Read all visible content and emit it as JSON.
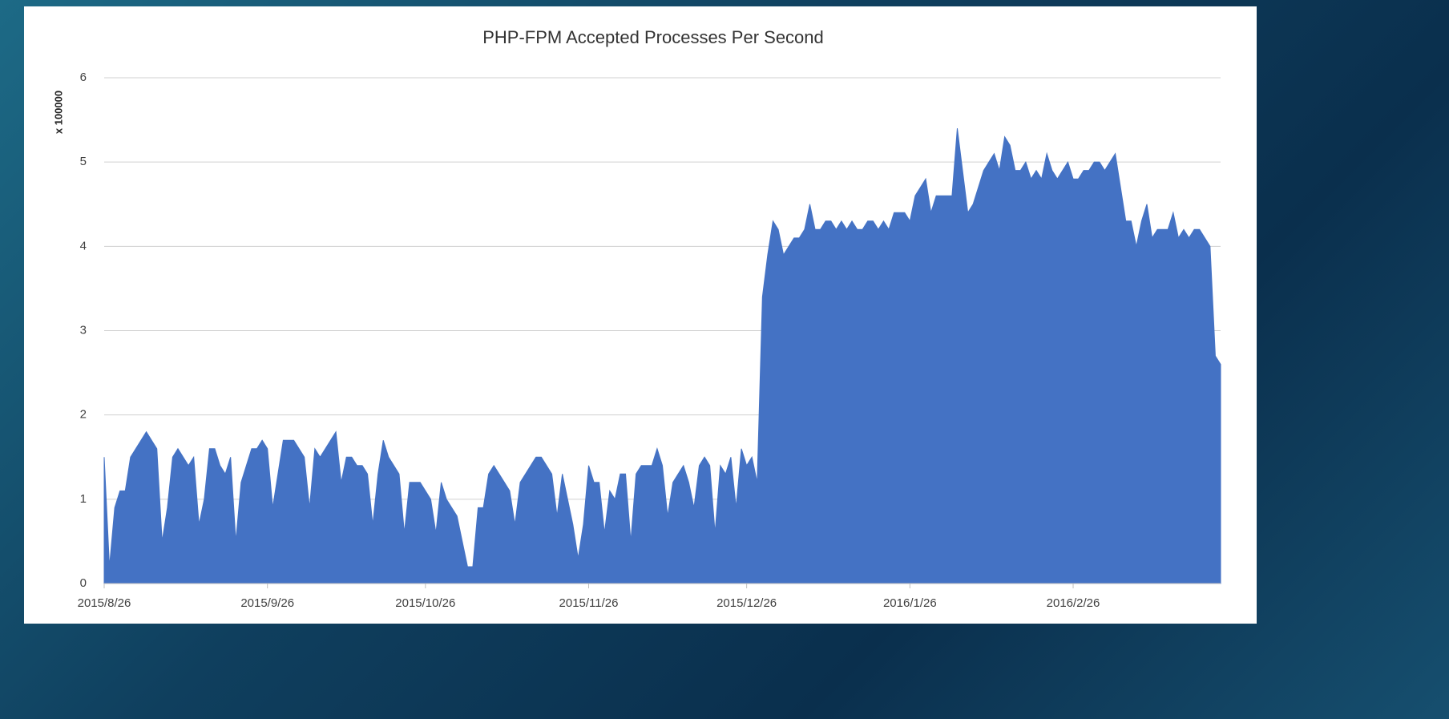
{
  "chart_data": {
    "type": "area",
    "title": "PHP-FPM Accepted Processes Per Second",
    "y_label": "x 100000",
    "color": "#4472c4",
    "grid": true,
    "ylim": [
      0,
      6
    ],
    "yticks": [
      0,
      1,
      2,
      3,
      4,
      5,
      6
    ],
    "xticks": [
      "2015/8/26",
      "2015/9/26",
      "2015/10/26",
      "2015/11/26",
      "2015/12/26",
      "2016/1/26",
      "2016/2/26"
    ],
    "x": [
      "2015/8/26",
      "2015/8/27",
      "2015/8/28",
      "2015/8/29",
      "2015/8/30",
      "2015/8/31",
      "2015/9/1",
      "2015/9/2",
      "2015/9/3",
      "2015/9/4",
      "2015/9/5",
      "2015/9/6",
      "2015/9/7",
      "2015/9/8",
      "2015/9/9",
      "2015/9/10",
      "2015/9/11",
      "2015/9/12",
      "2015/9/13",
      "2015/9/14",
      "2015/9/15",
      "2015/9/16",
      "2015/9/17",
      "2015/9/18",
      "2015/9/19",
      "2015/9/20",
      "2015/9/21",
      "2015/9/22",
      "2015/9/23",
      "2015/9/24",
      "2015/9/25",
      "2015/9/26",
      "2015/9/27",
      "2015/9/28",
      "2015/9/29",
      "2015/9/30",
      "2015/10/1",
      "2015/10/2",
      "2015/10/3",
      "2015/10/4",
      "2015/10/5",
      "2015/10/6",
      "2015/10/7",
      "2015/10/8",
      "2015/10/9",
      "2015/10/10",
      "2015/10/11",
      "2015/10/12",
      "2015/10/13",
      "2015/10/14",
      "2015/10/15",
      "2015/10/16",
      "2015/10/17",
      "2015/10/18",
      "2015/10/19",
      "2015/10/20",
      "2015/10/21",
      "2015/10/22",
      "2015/10/23",
      "2015/10/24",
      "2015/10/25",
      "2015/10/26",
      "2015/10/27",
      "2015/10/28",
      "2015/10/29",
      "2015/10/30",
      "2015/10/31",
      "2015/11/1",
      "2015/11/2",
      "2015/11/3",
      "2015/11/4",
      "2015/11/5",
      "2015/11/6",
      "2015/11/7",
      "2015/11/8",
      "2015/11/9",
      "2015/11/10",
      "2015/11/11",
      "2015/11/12",
      "2015/11/13",
      "2015/11/14",
      "2015/11/15",
      "2015/11/16",
      "2015/11/17",
      "2015/11/18",
      "2015/11/19",
      "2015/11/20",
      "2015/11/21",
      "2015/11/22",
      "2015/11/23",
      "2015/11/24",
      "2015/11/25",
      "2015/11/26",
      "2015/11/27",
      "2015/11/28",
      "2015/11/29",
      "2015/11/30",
      "2015/12/1",
      "2015/12/2",
      "2015/12/3",
      "2015/12/4",
      "2015/12/5",
      "2015/12/6",
      "2015/12/7",
      "2015/12/8",
      "2015/12/9",
      "2015/12/10",
      "2015/12/11",
      "2015/12/12",
      "2015/12/13",
      "2015/12/14",
      "2015/12/15",
      "2015/12/16",
      "2015/12/17",
      "2015/12/18",
      "2015/12/19",
      "2015/12/20",
      "2015/12/21",
      "2015/12/22",
      "2015/12/23",
      "2015/12/24",
      "2015/12/25",
      "2015/12/26",
      "2015/12/27",
      "2015/12/28",
      "2015/12/29",
      "2015/12/30",
      "2015/12/31",
      "2016/1/1",
      "2016/1/2",
      "2016/1/3",
      "2016/1/4",
      "2016/1/5",
      "2016/1/6",
      "2016/1/7",
      "2016/1/8",
      "2016/1/9",
      "2016/1/10",
      "2016/1/11",
      "2016/1/12",
      "2016/1/13",
      "2016/1/14",
      "2016/1/15",
      "2016/1/16",
      "2016/1/17",
      "2016/1/18",
      "2016/1/19",
      "2016/1/20",
      "2016/1/21",
      "2016/1/22",
      "2016/1/23",
      "2016/1/24",
      "2016/1/25",
      "2016/1/26",
      "2016/1/27",
      "2016/1/28",
      "2016/1/29",
      "2016/1/30",
      "2016/1/31",
      "2016/2/1",
      "2016/2/2",
      "2016/2/3",
      "2016/2/4",
      "2016/2/5",
      "2016/2/6",
      "2016/2/7",
      "2016/2/8",
      "2016/2/9",
      "2016/2/10",
      "2016/2/11",
      "2016/2/12",
      "2016/2/13",
      "2016/2/14",
      "2016/2/15",
      "2016/2/16",
      "2016/2/17",
      "2016/2/18",
      "2016/2/19",
      "2016/2/20",
      "2016/2/21",
      "2016/2/22",
      "2016/2/23",
      "2016/2/24",
      "2016/2/25",
      "2016/2/26",
      "2016/2/27",
      "2016/2/28",
      "2016/2/29",
      "2016/3/1",
      "2016/3/2",
      "2016/3/3",
      "2016/3/4",
      "2016/3/5",
      "2016/3/6",
      "2016/3/7",
      "2016/3/8",
      "2016/3/9",
      "2016/3/10",
      "2016/3/11",
      "2016/3/12",
      "2016/3/13",
      "2016/3/14",
      "2016/3/15",
      "2016/3/16",
      "2016/3/17",
      "2016/3/18",
      "2016/3/19",
      "2016/3/20",
      "2016/3/21",
      "2016/3/22",
      "2016/3/23",
      "2016/3/24",
      "2016/3/25"
    ],
    "values": [
      1.5,
      0.2,
      0.9,
      1.1,
      1.1,
      1.5,
      1.6,
      1.7,
      1.8,
      1.7,
      1.6,
      0.5,
      0.9,
      1.5,
      1.6,
      1.5,
      1.4,
      1.5,
      0.7,
      1.0,
      1.6,
      1.6,
      1.4,
      1.3,
      1.5,
      0.5,
      1.2,
      1.4,
      1.6,
      1.6,
      1.7,
      1.6,
      0.9,
      1.3,
      1.7,
      1.7,
      1.7,
      1.6,
      1.5,
      0.9,
      1.6,
      1.5,
      1.6,
      1.7,
      1.8,
      1.2,
      1.5,
      1.5,
      1.4,
      1.4,
      1.3,
      0.7,
      1.3,
      1.7,
      1.5,
      1.4,
      1.3,
      0.6,
      1.2,
      1.2,
      1.2,
      1.1,
      1.0,
      0.6,
      1.2,
      1.0,
      0.9,
      0.8,
      0.5,
      0.2,
      0.2,
      0.9,
      0.9,
      1.3,
      1.4,
      1.3,
      1.2,
      1.1,
      0.7,
      1.2,
      1.3,
      1.4,
      1.5,
      1.5,
      1.4,
      1.3,
      0.8,
      1.3,
      1.0,
      0.7,
      0.3,
      0.7,
      1.4,
      1.2,
      1.2,
      0.6,
      1.1,
      1.0,
      1.3,
      1.3,
      0.5,
      1.3,
      1.4,
      1.4,
      1.4,
      1.6,
      1.4,
      0.8,
      1.2,
      1.3,
      1.4,
      1.2,
      0.9,
      1.4,
      1.5,
      1.4,
      0.6,
      1.4,
      1.3,
      1.5,
      0.9,
      1.6,
      1.4,
      1.5,
      1.2,
      3.4,
      3.9,
      4.3,
      4.2,
      3.9,
      4.0,
      4.1,
      4.1,
      4.2,
      4.5,
      4.2,
      4.2,
      4.3,
      4.3,
      4.2,
      4.3,
      4.2,
      4.3,
      4.2,
      4.2,
      4.3,
      4.3,
      4.2,
      4.3,
      4.2,
      4.4,
      4.4,
      4.4,
      4.3,
      4.6,
      4.7,
      4.8,
      4.4,
      4.6,
      4.6,
      4.6,
      4.6,
      5.4,
      4.9,
      4.4,
      4.5,
      4.7,
      4.9,
      5.0,
      5.1,
      4.9,
      5.3,
      5.2,
      4.9,
      4.9,
      5.0,
      4.8,
      4.9,
      4.8,
      5.1,
      4.9,
      4.8,
      4.9,
      5.0,
      4.8,
      4.8,
      4.9,
      4.9,
      5.0,
      5.0,
      4.9,
      5.0,
      5.1,
      4.7,
      4.3,
      4.3,
      4.0,
      4.3,
      4.5,
      4.1,
      4.2,
      4.2,
      4.2,
      4.4,
      4.1,
      4.2,
      4.1,
      4.2,
      4.2,
      4.1,
      4.0,
      2.7,
      2.6
    ]
  }
}
